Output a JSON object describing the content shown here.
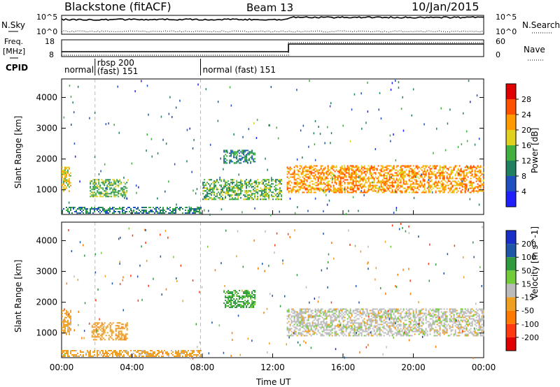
{
  "header": {
    "station": "Blackstone (fitACF)",
    "beam": "Beam 13",
    "date": "10/Jan/2015"
  },
  "labels": {
    "nsky": "N.Sky",
    "nsearch": "N.Search",
    "freq_top": "Freq.",
    "freq_unit": "[MHz]",
    "nave": "Nave",
    "cpid": "CPID",
    "nsky_hi": "10^5",
    "nsky_lo": "10^0",
    "freq_hi": "18",
    "freq_lo": "8",
    "nave_hi": "60",
    "nave_lo": "0",
    "cpid_modes": [
      {
        "start_hour": 0,
        "text": "normal",
        "text2": ""
      },
      {
        "start_hour": 1.9,
        "text": "rbsp 200",
        "text2": "(fast) 151"
      },
      {
        "start_hour": 7.9,
        "text": "normal (fast) 151",
        "text2": ""
      }
    ]
  },
  "colors": {
    "power": [
      "#2020ff",
      "#2050c0",
      "#208060",
      "#40b040",
      "#e0d020",
      "#ff9a00",
      "#ff5000",
      "#e00000"
    ],
    "velocity": [
      "#1a2fc8",
      "#1f57a8",
      "#2f9b3c",
      "#72cc3a",
      "#bbbbbb",
      "#f0a020",
      "#ff7a00",
      "#ff3a10",
      "#e00000"
    ]
  },
  "chart_data": [
    {
      "type": "heatmap",
      "panel": "power",
      "ylabel": "Slant Range [km]",
      "x_ticks": [
        "00:00",
        "04:00",
        "08:00",
        "12:00",
        "16:00",
        "20:00",
        "00:00"
      ],
      "y_ticks": [
        1000,
        2000,
        3000,
        4000
      ],
      "ylim": [
        200,
        4600
      ],
      "colorbar_label": "Power [dB]",
      "colorbar_ticks": [
        4,
        8,
        12,
        16,
        20,
        24,
        28
      ],
      "colorbar_range": [
        0,
        32
      ],
      "features": [
        {
          "start_hour": 0.0,
          "end_hour": 0.5,
          "range_km_min": 950,
          "range_km_max": 1750,
          "power_db": 18
        },
        {
          "start_hour": 1.6,
          "end_hour": 3.7,
          "range_km_min": 800,
          "range_km_max": 1350,
          "power_db": 14
        },
        {
          "start_hour": 0.0,
          "end_hour": 7.9,
          "range_km_min": 250,
          "range_km_max": 450,
          "power_db": 10
        },
        {
          "start_hour": 8.0,
          "end_hour": 12.5,
          "range_km_min": 700,
          "range_km_max": 1350,
          "power_db": 14
        },
        {
          "start_hour": 9.2,
          "end_hour": 11.0,
          "range_km_min": 1850,
          "range_km_max": 2300,
          "power_db": 10
        },
        {
          "start_hour": 12.8,
          "end_hour": 24.0,
          "range_km_min": 900,
          "range_km_max": 1800,
          "power_db": 22
        }
      ]
    },
    {
      "type": "heatmap",
      "panel": "velocity",
      "ylabel": "Slant Range [km]",
      "xlabel": "Time UT",
      "x_ticks": [
        "00:00",
        "04:00",
        "08:00",
        "12:00",
        "16:00",
        "20:00",
        "00:00"
      ],
      "y_ticks": [
        1000,
        2000,
        3000,
        4000
      ],
      "ylim": [
        200,
        4600
      ],
      "colorbar_label": "Velocity [m s^-1]",
      "colorbar_ticks": [
        200,
        100,
        50,
        15,
        -15,
        -50,
        -100,
        -200
      ],
      "features": [
        {
          "start_hour": 0.0,
          "end_hour": 0.5,
          "range_km_min": 950,
          "range_km_max": 1750,
          "velocity_ms": -30
        },
        {
          "start_hour": 1.7,
          "end_hour": 3.7,
          "range_km_min": 800,
          "range_km_max": 1350,
          "velocity_ms": -40
        },
        {
          "start_hour": 0.0,
          "end_hour": 7.9,
          "range_km_min": 250,
          "range_km_max": 450,
          "velocity_ms": -30
        },
        {
          "start_hour": 9.2,
          "end_hour": 11.0,
          "range_km_min": 1850,
          "range_km_max": 2400,
          "velocity_ms": 40
        },
        {
          "start_hour": 12.8,
          "end_hour": 24.0,
          "range_km_min": 900,
          "range_km_max": 1800,
          "velocity_ms": 0
        }
      ]
    }
  ],
  "summary_lines": {
    "nsky_level": 0.78,
    "freq_before_mhz": 10.5,
    "freq_after_mhz": 11.5,
    "freq_change_hour": 12.9,
    "nave_before": 0,
    "nave_after": 60
  }
}
